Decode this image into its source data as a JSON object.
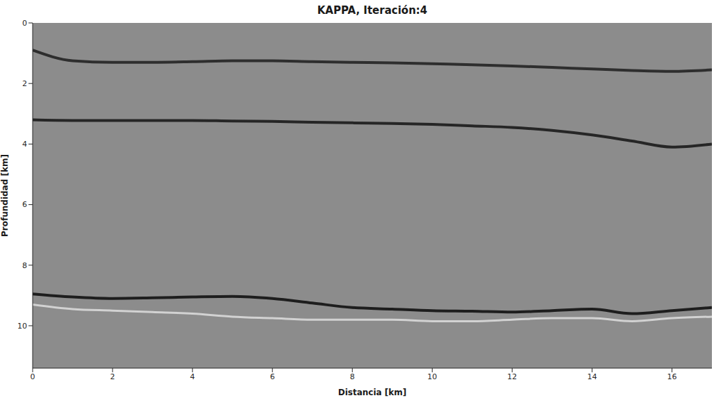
{
  "chart_data": {
    "type": "line",
    "title": "KAPPA, Iteración:4",
    "x_label": "Distancia [km]",
    "y_label": "Profundidad [km]",
    "x": [
      0,
      1,
      2,
      3,
      4,
      5,
      6,
      7,
      8,
      9,
      10,
      11,
      12,
      13,
      14,
      15,
      16,
      17
    ],
    "series": [
      {
        "color": "#2e2e2e",
        "values": [
          0.9,
          1.25,
          1.3,
          1.3,
          1.28,
          1.25,
          1.25,
          1.28,
          1.3,
          1.32,
          1.35,
          1.38,
          1.42,
          1.47,
          1.52,
          1.57,
          1.6,
          1.55
        ]
      },
      {
        "color": "#262626",
        "values": [
          3.2,
          3.22,
          3.22,
          3.22,
          3.22,
          3.24,
          3.25,
          3.28,
          3.3,
          3.32,
          3.35,
          3.4,
          3.45,
          3.55,
          3.7,
          3.9,
          4.1,
          4.0
        ]
      },
      {
        "color": "#1e1e1e",
        "values": [
          8.95,
          9.05,
          9.1,
          9.08,
          9.05,
          9.03,
          9.1,
          9.25,
          9.4,
          9.45,
          9.5,
          9.52,
          9.55,
          9.5,
          9.45,
          9.6,
          9.5,
          9.4
        ]
      },
      {
        "color": "#d2d2d2",
        "values": [
          9.3,
          9.45,
          9.5,
          9.55,
          9.6,
          9.7,
          9.75,
          9.8,
          9.8,
          9.8,
          9.85,
          9.85,
          9.8,
          9.75,
          9.75,
          9.85,
          9.75,
          9.7
        ]
      }
    ],
    "xlim": [
      0,
      17
    ],
    "ylim": [
      0,
      11.4
    ],
    "xticks": [
      0,
      2,
      4,
      6,
      8,
      10,
      12,
      14,
      16
    ],
    "yticks": [
      0,
      2,
      4,
      6,
      8,
      10
    ],
    "grid": false
  }
}
